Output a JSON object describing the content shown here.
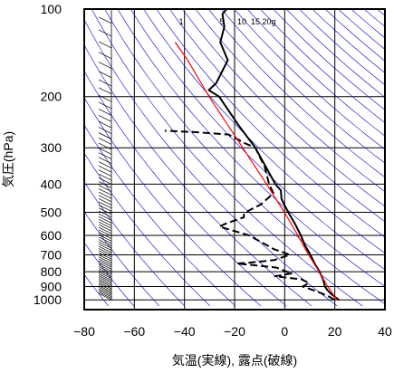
{
  "chart_data": {
    "type": "line",
    "chart_kind": "skew-T log-P diagram",
    "xlabel": "気温(実線), 露点(破線)",
    "ylabel": "気圧(hPa)",
    "x_ticks": [
      -80,
      -60,
      -40,
      -20,
      0,
      20,
      40
    ],
    "y_ticks": [
      100,
      200,
      300,
      400,
      500,
      600,
      700,
      800,
      900,
      1000
    ],
    "y_scale": "log",
    "y_inverted": true,
    "xlim": [
      -80,
      40
    ],
    "ylim": [
      100,
      1050
    ],
    "grid": true,
    "mixing_ratio_labels": [
      "1",
      "5",
      "10",
      "15",
      "20g"
    ],
    "colors": {
      "temperature": "#000000",
      "dewpoint": "#000000",
      "parcel": "#ff0000",
      "dry_adiabats": "#0000cc",
      "grid": "#000000"
    },
    "series": [
      {
        "line_style": "solid",
        "points": [
          {
            "p": 1000,
            "t": 20.8
          },
          {
            "p": 975,
            "t": 18.6
          },
          {
            "p": 950,
            "t": 16.5
          },
          {
            "p": 925,
            "t": 14.8
          },
          {
            "p": 900,
            "t": 13.4
          },
          {
            "p": 875,
            "t": 12.5
          },
          {
            "p": 850,
            "t": 11.6
          },
          {
            "p": 800,
            "t": 9.2
          },
          {
            "p": 750,
            "t": 6.1
          },
          {
            "p": 700,
            "t": 3.2
          },
          {
            "p": 650,
            "t": -0.2
          },
          {
            "p": 600,
            "t": -3.3
          },
          {
            "p": 550,
            "t": -7.0
          },
          {
            "p": 500,
            "t": -11.5
          },
          {
            "p": 450,
            "t": -16.0
          },
          {
            "p": 420,
            "t": -17.5
          },
          {
            "p": 400,
            "t": -20.5
          },
          {
            "p": 350,
            "t": -26.5
          },
          {
            "p": 300,
            "t": -33.5
          },
          {
            "p": 250,
            "t": -43.5
          },
          {
            "p": 200,
            "t": -55.0
          },
          {
            "p": 190,
            "t": -60.0
          },
          {
            "p": 180,
            "t": -58.0
          },
          {
            "p": 150,
            "t": -56.5
          },
          {
            "p": 130,
            "t": -62.0
          },
          {
            "p": 115,
            "t": -62.5
          },
          {
            "p": 104,
            "t": -65.0
          },
          {
            "p": 100,
            "t": -64.0
          }
        ]
      },
      {
        "line_style": "dashed",
        "points": [
          {
            "p": 1000,
            "t": 19.0
          },
          {
            "p": 975,
            "t": 16.5
          },
          {
            "p": 950,
            "t": 13.0
          },
          {
            "p": 925,
            "t": 9.0
          },
          {
            "p": 900,
            "t": 4.5
          },
          {
            "p": 875,
            "t": 6.5
          },
          {
            "p": 850,
            "t": 3.0
          },
          {
            "p": 830,
            "t": -8.0
          },
          {
            "p": 810,
            "t": -1.5
          },
          {
            "p": 800,
            "t": -4.0
          },
          {
            "p": 775,
            "t": -8.5
          },
          {
            "p": 760,
            "t": -18.0
          },
          {
            "p": 750,
            "t": -25.0
          },
          {
            "p": 745,
            "t": -20.0
          },
          {
            "p": 730,
            "t": -10.5
          },
          {
            "p": 700,
            "t": -5.0
          },
          {
            "p": 670,
            "t": -12.0
          },
          {
            "p": 600,
            "t": -24.0
          },
          {
            "p": 560,
            "t": -37.0
          },
          {
            "p": 545,
            "t": -34.5
          },
          {
            "p": 520,
            "t": -28.5
          },
          {
            "p": 505,
            "t": -29.0
          },
          {
            "p": 490,
            "t": -27.0
          },
          {
            "p": 470,
            "t": -23.5
          },
          {
            "p": 430,
            "t": -20.0
          },
          {
            "p": 400,
            "t": -23.0
          },
          {
            "p": 350,
            "t": -27.0
          },
          {
            "p": 300,
            "t": -33.5
          },
          {
            "p": 290,
            "t": -38.0
          },
          {
            "p": 270,
            "t": -46.0
          },
          {
            "p": 265,
            "t": -60.0
          },
          {
            "p": 262,
            "t": -72.0
          }
        ]
      },
      {
        "line_style": "solid-red",
        "points": [
          {
            "p": 1000,
            "t": 20.0
          },
          {
            "p": 900,
            "t": 14.5
          },
          {
            "p": 800,
            "t": 9.0
          },
          {
            "p": 700,
            "t": 2.5
          },
          {
            "p": 600,
            "t": -4.5
          },
          {
            "p": 500,
            "t": -13.0
          },
          {
            "p": 400,
            "t": -24.0
          },
          {
            "p": 300,
            "t": -38.5
          },
          {
            "p": 200,
            "t": -59.0
          },
          {
            "p": 150,
            "t": -72.5
          },
          {
            "p": 130,
            "t": -80.0
          }
        ]
      }
    ]
  }
}
